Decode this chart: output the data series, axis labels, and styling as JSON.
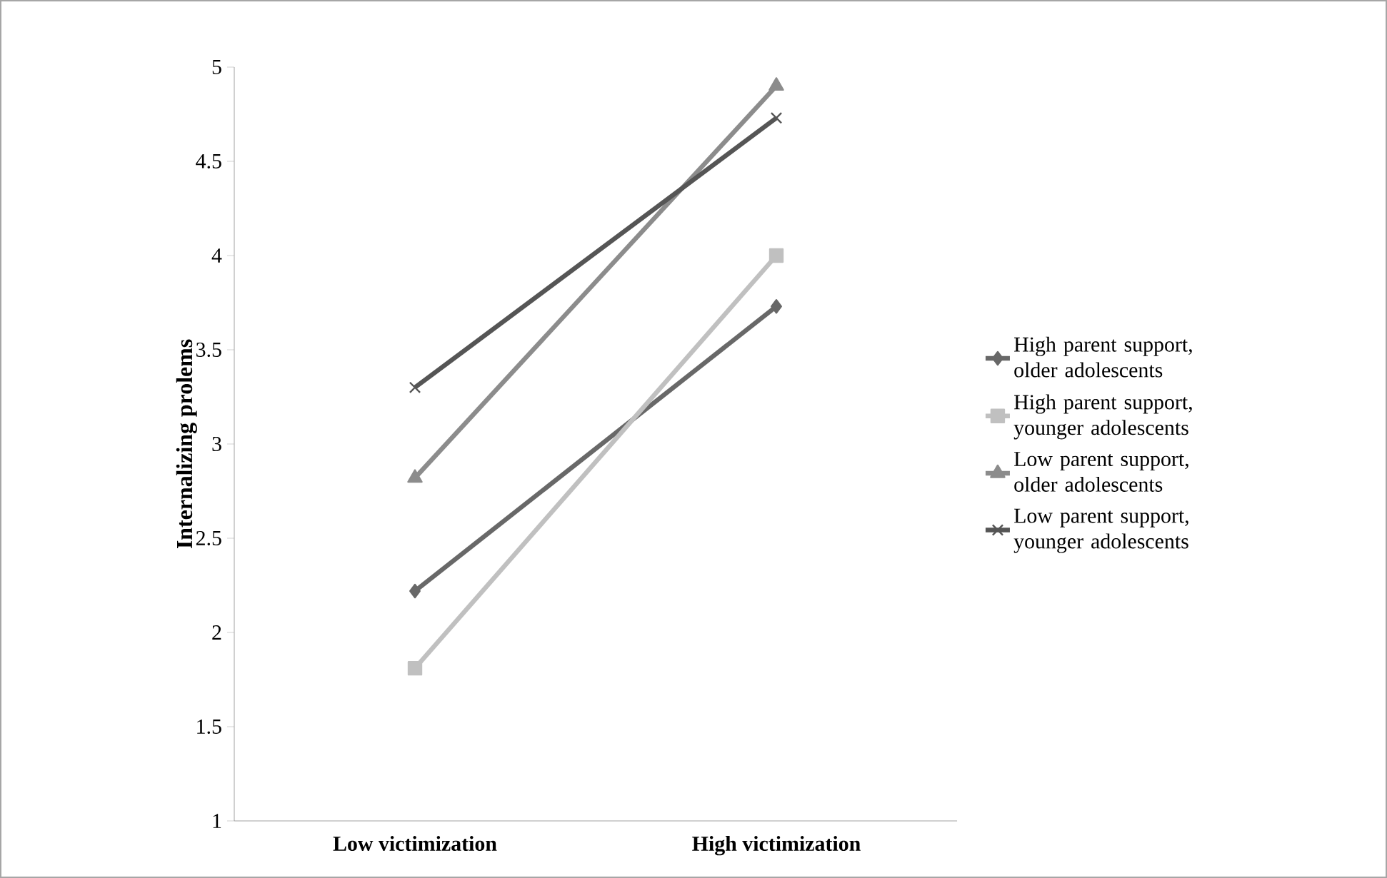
{
  "chart_data": {
    "type": "line",
    "ylabel": "Internalizing prolems",
    "categories": [
      "Low victimization",
      "High victimization"
    ],
    "series": [
      {
        "name": "High parent support, older adolescents",
        "color": "#686868",
        "marker": "diamond",
        "values": [
          2.22,
          3.73
        ]
      },
      {
        "name": "High parent support, younger adolescents",
        "color": "#c0c0c0",
        "marker": "square",
        "values": [
          1.81,
          4.0
        ]
      },
      {
        "name": "Low parent support, older adolescents",
        "color": "#8c8c8c",
        "marker": "triangle",
        "values": [
          2.82,
          4.9
        ]
      },
      {
        "name": "Low parent support, younger adolescents",
        "color": "#555555",
        "marker": "cross",
        "values": [
          3.3,
          4.73
        ]
      }
    ],
    "ylim": [
      1,
      5
    ],
    "yticks": [
      1,
      1.5,
      2,
      2.5,
      3,
      3.5,
      4,
      4.5,
      5
    ],
    "legend": "right",
    "grid": false
  }
}
